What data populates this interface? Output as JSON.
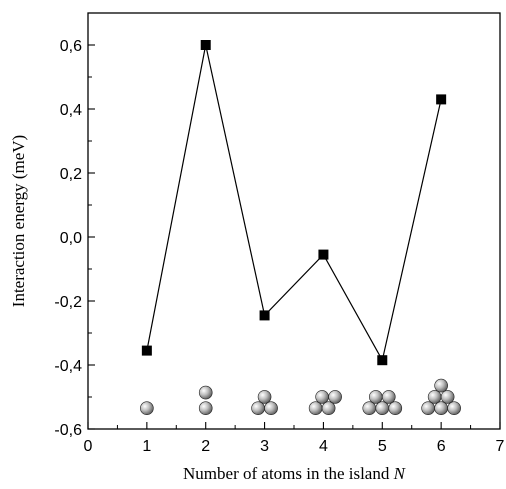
{
  "chart_data": {
    "type": "line",
    "xlabel": "Number of atoms in the island",
    "xlabel_italic": "N",
    "ylabel": "Interaction energy (meV)",
    "xlim": [
      0,
      7
    ],
    "ylim": [
      -0.6,
      0.7
    ],
    "grid": false,
    "x_ticks": [
      0,
      1,
      2,
      3,
      4,
      5,
      6,
      7
    ],
    "x_tick_labels": [
      "0",
      "1",
      "2",
      "3",
      "4",
      "5",
      "6",
      "7"
    ],
    "y_ticks": [
      -0.6,
      -0.4,
      -0.2,
      0.0,
      0.2,
      0.4,
      0.6
    ],
    "y_tick_labels": [
      "-0,6",
      "-0,4",
      "-0,2",
      "0,0",
      "0,2",
      "0,4",
      "0,6"
    ],
    "series": [
      {
        "x": [
          1,
          2,
          3,
          4,
          5,
          6
        ],
        "y": [
          -0.355,
          0.6,
          -0.245,
          -0.055,
          -0.385,
          0.43
        ],
        "marker": "square",
        "color": "#000000"
      }
    ],
    "annotations": {
      "description": "atom cluster icons below each data point",
      "clusters": [
        {
          "x": 1,
          "atoms": 1
        },
        {
          "x": 2,
          "atoms": 2
        },
        {
          "x": 3,
          "atoms": 3
        },
        {
          "x": 4,
          "atoms": 4
        },
        {
          "x": 5,
          "atoms": 5
        },
        {
          "x": 6,
          "atoms": 6
        }
      ]
    }
  }
}
